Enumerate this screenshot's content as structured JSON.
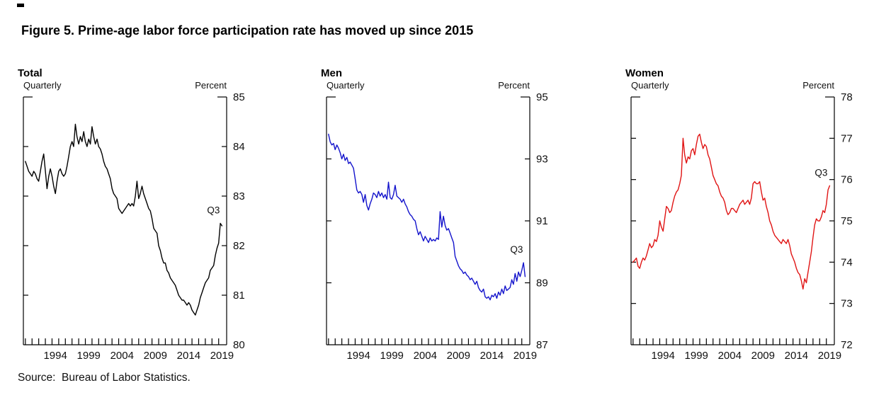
{
  "page": {
    "title": "Figure 5. Prime-age labor force participation rate has moved up since 2015",
    "source": "Source:  Bureau of Labor Statistics."
  },
  "chart_data": [
    {
      "type": "line",
      "title": "Total",
      "freq_label": "Quarterly",
      "unit_label": "Percent",
      "annotation": "Q3",
      "color": "#000000",
      "ylim": [
        80,
        85
      ],
      "yticks": [
        80,
        81,
        82,
        83,
        84,
        85
      ],
      "xlim": [
        1989.7,
        2020.2
      ],
      "year_ticks": [
        1990,
        2019
      ],
      "xtick_labels": [
        1994,
        1999,
        2004,
        2009,
        2014,
        2019
      ],
      "start": 1990,
      "freq": 4,
      "values": [
        83.7,
        83.6,
        83.5,
        83.45,
        83.4,
        83.5,
        83.45,
        83.35,
        83.3,
        83.5,
        83.7,
        83.85,
        83.5,
        83.15,
        83.4,
        83.55,
        83.4,
        83.2,
        83.05,
        83.3,
        83.5,
        83.55,
        83.45,
        83.4,
        83.45,
        83.6,
        83.8,
        84.0,
        84.1,
        84.0,
        84.45,
        84.2,
        84.05,
        84.2,
        84.1,
        84.3,
        84.1,
        84.0,
        84.15,
        84.05,
        84.4,
        84.2,
        84.05,
        84.15,
        84.0,
        83.95,
        83.85,
        83.7,
        83.6,
        83.55,
        83.45,
        83.35,
        83.15,
        83.05,
        83.0,
        82.95,
        82.75,
        82.7,
        82.65,
        82.7,
        82.75,
        82.8,
        82.85,
        82.8,
        82.85,
        82.8,
        83.0,
        83.3,
        82.95,
        83.05,
        83.2,
        83.05,
        82.95,
        82.85,
        82.75,
        82.7,
        82.55,
        82.35,
        82.3,
        82.25,
        82.0,
        81.9,
        81.75,
        81.65,
        81.65,
        81.5,
        81.45,
        81.35,
        81.3,
        81.25,
        81.2,
        81.1,
        81.0,
        80.95,
        80.9,
        80.9,
        80.85,
        80.8,
        80.85,
        80.8,
        80.7,
        80.65,
        80.6,
        80.7,
        80.8,
        80.95,
        81.05,
        81.15,
        81.25,
        81.3,
        81.35,
        81.5,
        81.55,
        81.6,
        81.8,
        81.95,
        82.05,
        82.45,
        82.4
      ]
    },
    {
      "type": "line",
      "title": "Men",
      "freq_label": "Quarterly",
      "unit_label": "Percent",
      "annotation": "Q3",
      "color": "#1414cc",
      "ylim": [
        87,
        95
      ],
      "yticks": [
        87,
        89,
        91,
        93,
        95
      ],
      "xlim": [
        1989.7,
        2020.2
      ],
      "year_ticks": [
        1990,
        2019
      ],
      "xtick_labels": [
        1994,
        1999,
        2004,
        2009,
        2014,
        2019
      ],
      "start": 1990,
      "freq": 4,
      "values": [
        93.8,
        93.55,
        93.45,
        93.5,
        93.3,
        93.45,
        93.35,
        93.2,
        93.0,
        93.15,
        92.95,
        93.05,
        92.85,
        92.9,
        92.8,
        92.7,
        92.35,
        92.0,
        91.9,
        91.95,
        91.85,
        91.6,
        91.85,
        91.5,
        91.35,
        91.55,
        91.7,
        91.9,
        91.85,
        91.75,
        91.95,
        91.8,
        91.9,
        91.75,
        91.85,
        91.7,
        92.25,
        91.75,
        91.7,
        91.85,
        92.15,
        91.8,
        91.75,
        91.7,
        91.6,
        91.7,
        91.55,
        91.45,
        91.3,
        91.2,
        91.15,
        91.05,
        91.0,
        90.75,
        90.55,
        90.65,
        90.5,
        90.35,
        90.5,
        90.4,
        90.3,
        90.45,
        90.35,
        90.4,
        90.35,
        90.45,
        90.4,
        91.3,
        90.8,
        91.15,
        90.85,
        90.7,
        90.75,
        90.6,
        90.45,
        90.3,
        89.85,
        89.7,
        89.55,
        89.45,
        89.4,
        89.3,
        89.35,
        89.25,
        89.2,
        89.1,
        89.15,
        89.05,
        88.95,
        89.05,
        88.85,
        88.75,
        88.7,
        88.8,
        88.55,
        88.5,
        88.55,
        88.45,
        88.6,
        88.55,
        88.65,
        88.5,
        88.7,
        88.6,
        88.8,
        88.65,
        88.9,
        88.75,
        88.8,
        88.85,
        89.1,
        88.95,
        89.3,
        89.05,
        89.35,
        89.2,
        89.4,
        89.65,
        89.2
      ]
    },
    {
      "type": "line",
      "title": "Women",
      "freq_label": "Quarterly",
      "unit_label": "Percent",
      "annotation": "Q3",
      "color": "#e01414",
      "ylim": [
        72,
        78
      ],
      "yticks": [
        72,
        73,
        74,
        75,
        76,
        77,
        78
      ],
      "xlim": [
        1989.7,
        2020.2
      ],
      "year_ticks": [
        1990,
        2019
      ],
      "xtick_labels": [
        1994,
        1999,
        2004,
        2009,
        2014,
        2019
      ],
      "start": 1990,
      "freq": 4,
      "values": [
        74.0,
        74.05,
        74.1,
        73.9,
        73.85,
        74.0,
        74.1,
        74.05,
        74.15,
        74.3,
        74.45,
        74.35,
        74.4,
        74.55,
        74.5,
        74.65,
        75.0,
        74.85,
        74.75,
        75.05,
        75.35,
        75.3,
        75.2,
        75.25,
        75.45,
        75.6,
        75.7,
        75.75,
        75.9,
        76.1,
        77.0,
        76.6,
        76.4,
        76.55,
        76.5,
        76.7,
        76.75,
        76.6,
        76.85,
        77.05,
        77.1,
        76.9,
        76.75,
        76.85,
        76.8,
        76.6,
        76.5,
        76.3,
        76.1,
        76.0,
        75.9,
        75.85,
        75.7,
        75.6,
        75.55,
        75.45,
        75.25,
        75.15,
        75.2,
        75.3,
        75.3,
        75.25,
        75.2,
        75.3,
        75.4,
        75.45,
        75.5,
        75.4,
        75.45,
        75.5,
        75.4,
        75.55,
        75.9,
        75.95,
        75.9,
        75.9,
        75.95,
        75.7,
        75.5,
        75.55,
        75.35,
        75.2,
        75.0,
        74.9,
        74.75,
        74.65,
        74.6,
        74.55,
        74.5,
        74.45,
        74.55,
        74.5,
        74.45,
        74.55,
        74.4,
        74.2,
        74.1,
        74.0,
        73.85,
        73.75,
        73.7,
        73.55,
        73.35,
        73.6,
        73.5,
        73.75,
        74.0,
        74.25,
        74.6,
        74.9,
        75.05,
        75.0,
        75.0,
        75.1,
        75.25,
        75.2,
        75.4,
        75.75,
        75.85
      ]
    }
  ]
}
